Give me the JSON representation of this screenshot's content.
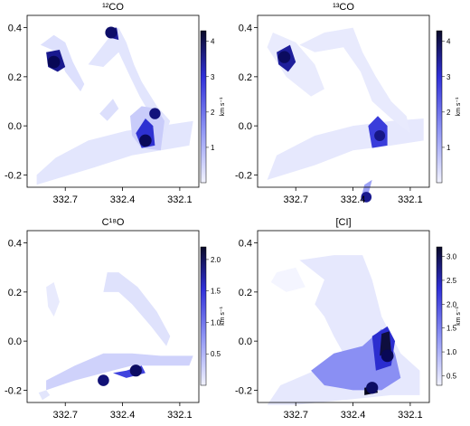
{
  "chart_data": [
    {
      "type": "heatmap",
      "title": "¹²CO",
      "x_ticks": [
        "332.7",
        "332.4",
        "332.1"
      ],
      "y_ticks": [
        "0.4",
        "0.2",
        "0.0",
        "-0.2"
      ],
      "xlim": [
        332.9,
        332.0
      ],
      "ylim": [
        -0.25,
        0.45
      ],
      "colorbar": {
        "ticks": [
          "1",
          "2",
          "3",
          "4"
        ],
        "range": [
          0,
          4.3
        ],
        "label": "km s⁻¹"
      },
      "peaks": [
        {
          "x": 332.76,
          "y": 0.26,
          "value": 4.2
        },
        {
          "x": 332.46,
          "y": 0.38,
          "value": 3.8
        },
        {
          "x": 332.28,
          "y": -0.06,
          "value": 4.1
        },
        {
          "x": 332.23,
          "y": 0.05,
          "value": 3.4
        }
      ]
    },
    {
      "type": "heatmap",
      "title": "¹³CO",
      "x_ticks": [
        "332.7",
        "332.4",
        "332.1"
      ],
      "y_ticks": [
        "0.4",
        "0.2",
        "0.0",
        "-0.2"
      ],
      "xlim": [
        332.9,
        332.0
      ],
      "ylim": [
        -0.25,
        0.45
      ],
      "colorbar": {
        "ticks": [
          "1",
          "2",
          "3",
          "4"
        ],
        "range": [
          0,
          4.3
        ],
        "label": "km s⁻¹"
      },
      "peaks": [
        {
          "x": 332.76,
          "y": 0.28,
          "value": 4.0
        },
        {
          "x": 332.26,
          "y": -0.04,
          "value": 3.2
        },
        {
          "x": 332.33,
          "y": -0.29,
          "value": 3.0
        }
      ]
    },
    {
      "type": "heatmap",
      "title": "C¹⁸O",
      "x_ticks": [
        "332.7",
        "332.4",
        "332.1"
      ],
      "y_ticks": [
        "0.4",
        "0.2",
        "0.0",
        "-0.2"
      ],
      "xlim": [
        332.9,
        332.0
      ],
      "ylim": [
        -0.25,
        0.45
      ],
      "colorbar": {
        "ticks": [
          "0.5",
          "1.0",
          "1.5",
          "2.0"
        ],
        "range": [
          0,
          2.2
        ],
        "label": "km s⁻¹"
      },
      "peaks": [
        {
          "x": 332.33,
          "y": -0.12,
          "value": 2.0
        },
        {
          "x": 332.5,
          "y": -0.16,
          "value": 1.8
        }
      ]
    },
    {
      "type": "heatmap",
      "title": "[CI]",
      "x_ticks": [
        "332.7",
        "332.4",
        "332.1"
      ],
      "y_ticks": [
        "0.4",
        "0.2",
        "0.0",
        "-0.2"
      ],
      "xlim": [
        332.9,
        332.0
      ],
      "ylim": [
        -0.25,
        0.45
      ],
      "colorbar": {
        "ticks": [
          "0.5",
          "1.0",
          "1.5",
          "2.0",
          "2.5",
          "3.0"
        ],
        "range": [
          0.3,
          3.2
        ],
        "label": "km s⁻¹"
      },
      "peaks": [
        {
          "x": 332.22,
          "y": -0.06,
          "value": 3.1
        },
        {
          "x": 332.3,
          "y": -0.19,
          "value": 2.9
        }
      ]
    }
  ]
}
